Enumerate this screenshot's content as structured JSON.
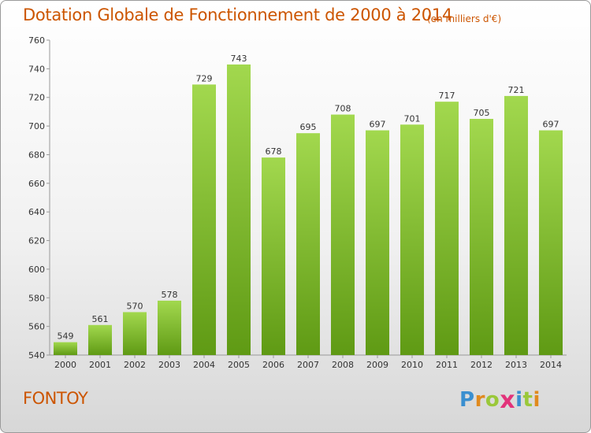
{
  "header": {
    "title": "Dotation Globale de Fonctionnement de 2000 à 2014",
    "unit": "(en milliers d'€)"
  },
  "footer": {
    "commune": "FONTOY",
    "logo_letters": [
      "P",
      "r",
      "o",
      "x",
      "i",
      "t",
      "i"
    ],
    "logo_colors": [
      "#3a8fd0",
      "#e08a1e",
      "#9ac83a",
      "#e2337a",
      "#3a8fd0",
      "#9ac83a",
      "#e08a1e"
    ]
  },
  "chart_data": {
    "type": "bar",
    "categories": [
      "2000",
      "2001",
      "2002",
      "2003",
      "2004",
      "2005",
      "2006",
      "2007",
      "2008",
      "2009",
      "2010",
      "2011",
      "2012",
      "2013",
      "2014"
    ],
    "values": [
      549,
      561,
      570,
      578,
      729,
      743,
      678,
      695,
      708,
      697,
      701,
      717,
      705,
      721,
      697
    ],
    "title": "Dotation Globale de Fonctionnement de 2000 à 2014",
    "subtitle": "(en milliers d'€)",
    "ylim": [
      540,
      760
    ],
    "yticks": [
      540,
      560,
      580,
      600,
      620,
      640,
      660,
      680,
      700,
      720,
      740,
      760
    ],
    "bar_color_top": "#a2d84e",
    "bar_color_bottom": "#5f9a14",
    "grid": false
  }
}
